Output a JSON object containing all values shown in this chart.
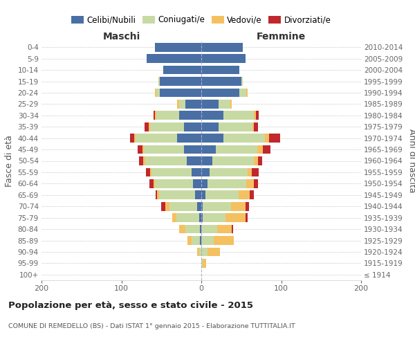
{
  "age_groups": [
    "100+",
    "95-99",
    "90-94",
    "85-89",
    "80-84",
    "75-79",
    "70-74",
    "65-69",
    "60-64",
    "55-59",
    "50-54",
    "45-49",
    "40-44",
    "35-39",
    "30-34",
    "25-29",
    "20-24",
    "15-19",
    "10-14",
    "5-9",
    "0-4"
  ],
  "birth_years": [
    "≤ 1914",
    "1915-1919",
    "1920-1924",
    "1925-1929",
    "1930-1934",
    "1935-1939",
    "1940-1944",
    "1945-1949",
    "1950-1954",
    "1955-1959",
    "1960-1964",
    "1965-1969",
    "1970-1974",
    "1975-1979",
    "1980-1984",
    "1985-1989",
    "1990-1994",
    "1995-1999",
    "2000-2004",
    "2005-2009",
    "2010-2014"
  ],
  "maschi": {
    "celibi": [
      0,
      0,
      0,
      2,
      2,
      3,
      5,
      8,
      10,
      12,
      18,
      22,
      30,
      22,
      28,
      20,
      52,
      52,
      48,
      68,
      58
    ],
    "coniugati": [
      0,
      0,
      3,
      10,
      18,
      28,
      35,
      45,
      48,
      50,
      52,
      50,
      52,
      42,
      28,
      8,
      4,
      2,
      0,
      0,
      0
    ],
    "vedovi": [
      0,
      0,
      2,
      5,
      8,
      5,
      5,
      2,
      2,
      2,
      3,
      2,
      2,
      2,
      2,
      2,
      2,
      0,
      0,
      0,
      0
    ],
    "divorziati": [
      0,
      0,
      0,
      0,
      0,
      0,
      5,
      2,
      5,
      5,
      5,
      6,
      5,
      5,
      2,
      0,
      0,
      0,
      0,
      0,
      0
    ]
  },
  "femmine": {
    "nubili": [
      0,
      0,
      0,
      0,
      0,
      2,
      2,
      5,
      8,
      10,
      14,
      18,
      28,
      22,
      28,
      22,
      48,
      50,
      48,
      55,
      52
    ],
    "coniugate": [
      0,
      2,
      8,
      16,
      20,
      28,
      35,
      42,
      48,
      48,
      52,
      52,
      52,
      42,
      38,
      14,
      8,
      2,
      0,
      0,
      0
    ],
    "vedove": [
      0,
      4,
      15,
      25,
      18,
      25,
      18,
      14,
      10,
      5,
      5,
      7,
      5,
      2,
      2,
      2,
      2,
      0,
      0,
      0,
      0
    ],
    "divorziate": [
      0,
      0,
      0,
      0,
      2,
      3,
      5,
      5,
      5,
      9,
      5,
      10,
      14,
      5,
      4,
      0,
      0,
      0,
      0,
      0,
      0
    ]
  },
  "colors": {
    "celibi_nubili": "#4a6fa5",
    "coniugati": "#c8daa4",
    "vedovi": "#f5c060",
    "divorziati": "#c0282d"
  },
  "xlim": 200,
  "title": "Popolazione per età, sesso e stato civile - 2015",
  "subtitle": "COMUNE DI REMEDELLO (BS) - Dati ISTAT 1° gennaio 2015 - Elaborazione TUTTITALIA.IT",
  "ylabel_left": "Fasce di età",
  "ylabel_right": "Anni di nascita",
  "xlabel_left": "Maschi",
  "xlabel_right": "Femmine",
  "background_color": "#ffffff",
  "grid_color": "#cccccc"
}
